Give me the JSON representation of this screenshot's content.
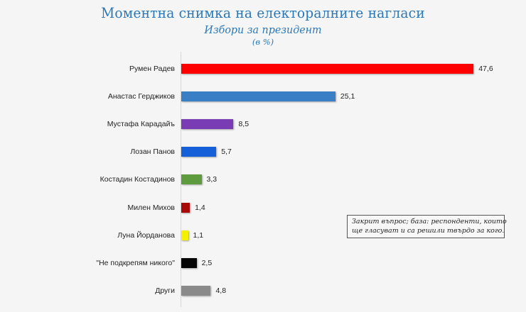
{
  "header": {
    "title": "Моментна снимка на електоралните нагласи",
    "subtitle": "Избори за президент",
    "unit": "(в %)"
  },
  "note": {
    "line1": "Закрит въпрос; база: респонденти, които",
    "line2": "ще гласуват и са решили твърдо за кого."
  },
  "colors": {
    "title": "#2a78b8",
    "background": "#f5f5f5"
  },
  "chart_data": {
    "type": "bar",
    "orientation": "horizontal",
    "title": "Моментна снимка на електоралните нагласи",
    "subtitle": "Избори за президент",
    "unit": "(в %)",
    "xlabel": "",
    "ylabel": "",
    "grid": false,
    "legend": null,
    "categories": [
      "Румен Радев",
      "Анастас Герджиков",
      "Мустафа Карадайъ",
      "Лозан Панов",
      "Костадин Костадинов",
      "Милен Михов",
      "Луна Йорданова",
      "\"Не подкрепям никого\"",
      "Други"
    ],
    "values": [
      47.6,
      25.1,
      8.5,
      5.7,
      3.3,
      1.4,
      1.1,
      2.5,
      4.8
    ],
    "value_labels": [
      "47,6",
      "25,1",
      "8,5",
      "5,7",
      "3,3",
      "1,4",
      "1,1",
      "2,5",
      "4,8"
    ],
    "bar_colors": [
      "#ff0000",
      "#3a7fc6",
      "#7a3cb4",
      "#1560d8",
      "#5e9a3e",
      "#a80a0a",
      "#f5f000",
      "#050505",
      "#8a8a8a"
    ],
    "annotation": "Закрит въпрос; база: респонденти, които ще гласуват и са решили твърдо за кого."
  }
}
